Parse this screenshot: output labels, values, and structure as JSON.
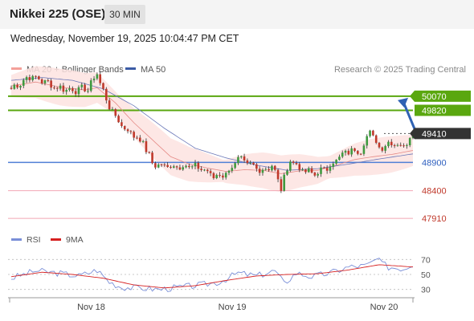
{
  "header": {
    "title": "Nikkei 225 (OSE)",
    "timeframe": "30 MIN"
  },
  "datetime": "Wednesday, November 19, 2025 10:04:47 PM CET",
  "legend": {
    "ma20": {
      "label": "MA 20 + Bollinger Bands",
      "color": "#f4a09a"
    },
    "ma50": {
      "label": "MA 50",
      "color": "#3b5ba5"
    }
  },
  "copyright": "Research © 2025 Trading Central",
  "colors": {
    "bull": "#3f9a3f",
    "bear": "#c0392b",
    "resistance": "#5aa70f",
    "support": "#4f7fd6",
    "support_minor": "#f2a7b4",
    "current": "#333333",
    "arrow": "#2f62b3",
    "rsi_line": "#7a8fd8",
    "rsi_ma": "#d62020"
  },
  "chart_data": [
    {
      "type": "candlestick",
      "ylim": [
        47770,
        50380
      ],
      "price_levels": [
        {
          "label": "50070",
          "value": 50070,
          "kind": "resistance"
        },
        {
          "label": "49820",
          "value": 49820,
          "kind": "resistance"
        },
        {
          "label": "49410",
          "value": 49410,
          "kind": "current"
        },
        {
          "label": "48900",
          "value": 48900,
          "kind": "support"
        },
        {
          "label": "48400",
          "value": 48400,
          "kind": "support_minor"
        },
        {
          "label": "47910",
          "value": 47910,
          "kind": "support_minor"
        }
      ],
      "anchors": [
        [
          0,
          50200
        ],
        [
          6,
          50420
        ],
        [
          10,
          50350
        ],
        [
          15,
          50220
        ],
        [
          20,
          50180
        ],
        [
          25,
          50200
        ],
        [
          28,
          50480
        ],
        [
          31,
          50000
        ],
        [
          34,
          49700
        ],
        [
          37,
          49500
        ],
        [
          40,
          49380
        ],
        [
          43,
          49250
        ],
        [
          46,
          48880
        ],
        [
          50,
          48830
        ],
        [
          56,
          48840
        ],
        [
          62,
          48800
        ],
        [
          66,
          48650
        ],
        [
          70,
          48700
        ],
        [
          74,
          48950
        ],
        [
          78,
          48850
        ],
        [
          82,
          48760
        ],
        [
          85,
          48850
        ],
        [
          88,
          48450
        ],
        [
          91,
          48950
        ],
        [
          95,
          48750
        ],
        [
          99,
          48700
        ],
        [
          103,
          48800
        ],
        [
          106,
          48950
        ],
        [
          110,
          49100
        ],
        [
          114,
          49120
        ],
        [
          117,
          49450
        ],
        [
          120,
          49160
        ],
        [
          124,
          49260
        ],
        [
          128,
          49180
        ],
        [
          131,
          49420
        ]
      ],
      "ma20_anchors": [
        [
          0,
          50250
        ],
        [
          8,
          50320
        ],
        [
          16,
          50230
        ],
        [
          24,
          50180
        ],
        [
          28,
          50220
        ],
        [
          34,
          49950
        ],
        [
          40,
          49600
        ],
        [
          46,
          49300
        ],
        [
          52,
          49000
        ],
        [
          58,
          48870
        ],
        [
          64,
          48800
        ],
        [
          70,
          48740
        ],
        [
          76,
          48770
        ],
        [
          82,
          48760
        ],
        [
          88,
          48700
        ],
        [
          94,
          48750
        ],
        [
          100,
          48760
        ],
        [
          106,
          48850
        ],
        [
          112,
          48950
        ],
        [
          118,
          49000
        ],
        [
          124,
          49040
        ],
        [
          131,
          49110
        ]
      ],
      "ma50_anchors": [
        [
          0,
          50350
        ],
        [
          10,
          50400
        ],
        [
          20,
          50350
        ],
        [
          30,
          50200
        ],
        [
          40,
          49900
        ],
        [
          50,
          49500
        ],
        [
          60,
          49150
        ],
        [
          70,
          48980
        ],
        [
          80,
          48850
        ],
        [
          90,
          48760
        ],
        [
          100,
          48790
        ],
        [
          110,
          48870
        ],
        [
          120,
          48960
        ],
        [
          131,
          49050
        ]
      ],
      "bollinger_width": 260,
      "forecast": {
        "from": 49410,
        "to": 50070
      }
    },
    {
      "type": "line",
      "legend": [
        {
          "name": "RSI",
          "color": "#7a8fd8"
        },
        {
          "name": "9MA",
          "color": "#d62020"
        }
      ],
      "ylim": [
        20,
        80
      ],
      "ticks": [
        {
          "label": "70",
          "value": 70
        },
        {
          "label": "50",
          "value": 50
        },
        {
          "label": "30",
          "value": 30
        }
      ],
      "rsi_anchors": [
        [
          0,
          45
        ],
        [
          8,
          55
        ],
        [
          15,
          52
        ],
        [
          22,
          48
        ],
        [
          28,
          56
        ],
        [
          32,
          40
        ],
        [
          36,
          33
        ],
        [
          42,
          32
        ],
        [
          48,
          30
        ],
        [
          55,
          33
        ],
        [
          62,
          36
        ],
        [
          68,
          40
        ],
        [
          74,
          52
        ],
        [
          80,
          48
        ],
        [
          86,
          55
        ],
        [
          89,
          38
        ],
        [
          93,
          52
        ],
        [
          98,
          47
        ],
        [
          104,
          52
        ],
        [
          110,
          60
        ],
        [
          116,
          62
        ],
        [
          119,
          70
        ],
        [
          123,
          60
        ],
        [
          128,
          58
        ],
        [
          131,
          64
        ]
      ],
      "rsi_ma_anchors": [
        [
          0,
          47
        ],
        [
          10,
          53
        ],
        [
          20,
          50
        ],
        [
          30,
          45
        ],
        [
          40,
          36
        ],
        [
          50,
          32
        ],
        [
          60,
          35
        ],
        [
          70,
          42
        ],
        [
          80,
          48
        ],
        [
          90,
          50
        ],
        [
          100,
          51
        ],
        [
          110,
          56
        ],
        [
          120,
          63
        ],
        [
          131,
          60
        ]
      ]
    }
  ],
  "x_axis": {
    "labels": [
      {
        "label": "Nov 18",
        "index": 30
      },
      {
        "label": "Nov 19",
        "index": 76
      },
      {
        "label": "Nov 20",
        "index": 130
      }
    ]
  }
}
